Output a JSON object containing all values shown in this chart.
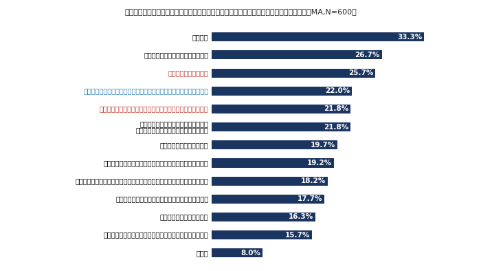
{
  "title": "この取り組みを観光サービス提供者が行うことで、その観光地への愛着につながると思う（MA,N=600）",
  "categories": [
    "地産地消",
    "観光地の伝統文化や伝統工芸の活用",
    "観光地周辺の自然保護",
    "環境に配慮したアメニティの提供や使い捨てプラスチック製品の削減",
    "観光地周辺の地元住民や事業者（老舗、職人など）との交流",
    "人や地球にやさしい取り組みに関する\n第三者機関からの認証の取得や表彰など",
    "食品ロスなど廃棄物の削減",
    "オーガニックやフェアトレードの食材やコスメなどの提供",
    "従業員の尊重、多様性（障害者雇用、女性が働きやすい職場づくりなど）",
    "未利用資源（空き家、規格外の農作物など）の活用",
    "再生可能エネルギーの利用",
    "電気自動車や自転車など環境負荷の少ない移動手段の提供",
    "その他"
  ],
  "values": [
    33.3,
    26.7,
    25.7,
    22.0,
    21.8,
    21.8,
    19.7,
    19.2,
    18.2,
    17.7,
    16.3,
    15.7,
    8.0
  ],
  "label_colors": [
    "#000000",
    "#000000",
    "#c0392b",
    "#2980b9",
    "#c0392b",
    "#000000",
    "#000000",
    "#000000",
    "#000000",
    "#000000",
    "#000000",
    "#000000",
    "#000000"
  ],
  "bar_color": "#1a3560",
  "value_color": "#ffffff",
  "background_color": "#ffffff",
  "xlim_max": 40,
  "bar_height": 0.5,
  "title_fontsize": 8.0,
  "label_fontsize": 7.0,
  "value_fontsize": 7.5
}
